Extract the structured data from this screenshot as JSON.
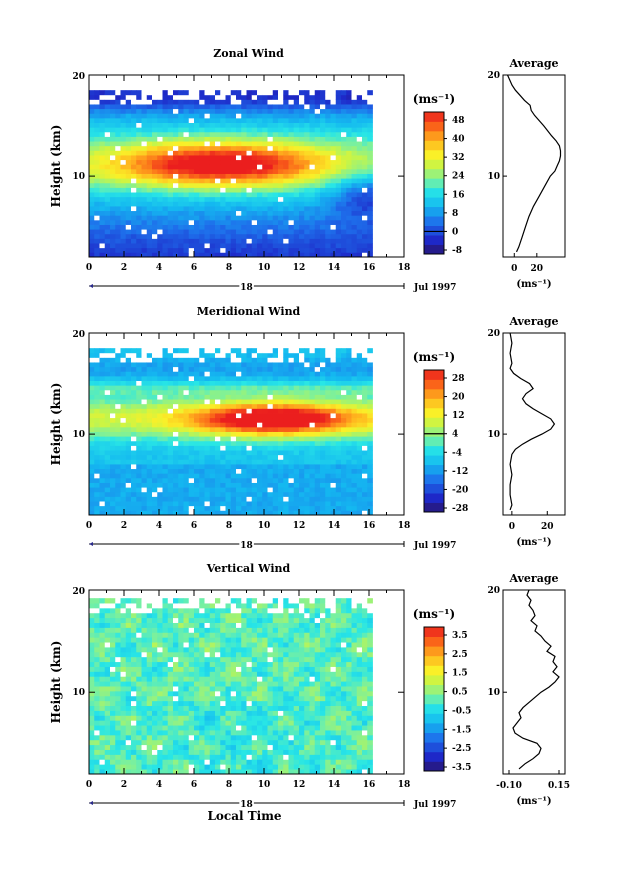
{
  "chart_data": [
    {
      "type": "heatmap",
      "title": "Zonal Wind",
      "ylabel": "Height (km)",
      "xlim": [
        0,
        18
      ],
      "ylim": [
        2,
        20
      ],
      "x_ticks": [
        "0",
        "2",
        "4",
        "6",
        "8",
        "10",
        "12",
        "14",
        "16",
        "18"
      ],
      "y_ticks": [
        "10",
        "20"
      ],
      "date_tick": "18",
      "date_label": "Jul 1997",
      "colorbar_unit": "(ms⁻¹)",
      "colorbar_levels": [
        "48",
        "40",
        "32",
        "24",
        "16",
        "8",
        "0",
        "-8"
      ],
      "colorbar_range": [
        -8,
        52
      ],
      "colorbar_zero_line": 0,
      "field": {
        "kind": "zonal",
        "x_end": 16.2,
        "y_top": 18.5,
        "core": {
          "x": 7.5,
          "y": 11.2,
          "value": 48
        },
        "upper_min": {
          "y": 17.8,
          "value": -5
        },
        "low_right_min": {
          "x": 16,
          "y": 8,
          "value": 0
        }
      },
      "average": {
        "title": "Average",
        "xlabel": "(ms⁻¹)",
        "x_ticks": [
          "0",
          "20"
        ],
        "xlim": [
          -10,
          45
        ],
        "ylim": [
          2,
          20
        ],
        "y_ticks": [
          "10",
          "20"
        ],
        "profile": {
          "y": [
            2.5,
            3,
            4,
            5,
            6,
            7,
            8,
            9,
            10,
            10.5,
            11,
            11.5,
            12,
            12.5,
            13,
            13.5,
            14,
            15,
            16,
            16.5,
            17,
            17.5,
            18,
            18.5,
            19,
            19.5,
            20
          ],
          "x": [
            2,
            4,
            7,
            10,
            13,
            17,
            22,
            27,
            32,
            36,
            38,
            40,
            41,
            41,
            40,
            37,
            33,
            26,
            18,
            15,
            14,
            9,
            5,
            1,
            -2,
            -4,
            -6
          ]
        }
      }
    },
    {
      "type": "heatmap",
      "title": "Meridional Wind",
      "ylabel": "Height (km)",
      "xlim": [
        0,
        18
      ],
      "ylim": [
        2,
        20
      ],
      "x_ticks": [
        "0",
        "2",
        "4",
        "6",
        "8",
        "10",
        "12",
        "14",
        "16",
        "18"
      ],
      "y_ticks": [
        "10",
        "20"
      ],
      "date_tick": "18",
      "date_label": "Jul 1997",
      "colorbar_unit": "(ms⁻¹)",
      "colorbar_levels": [
        "28",
        "20",
        "12",
        "4",
        "-4",
        "-12",
        "-20",
        "-28"
      ],
      "colorbar_range": [
        -28,
        32
      ],
      "colorbar_zero_line": 4,
      "field": {
        "kind": "meridional",
        "x_end": 16.2,
        "y_top": 18.5,
        "core": {
          "x": 10.5,
          "y": 11.5,
          "value": 30
        }
      },
      "average": {
        "title": "Average",
        "xlabel": "(ms⁻¹)",
        "x_ticks": [
          "0",
          "20"
        ],
        "xlim": [
          -5,
          30
        ],
        "ylim": [
          2,
          20
        ],
        "y_ticks": [
          "10",
          "20"
        ],
        "profile": {
          "y": [
            2.5,
            3,
            4,
            5,
            6,
            7,
            8,
            8.5,
            9,
            9.5,
            10,
            10.5,
            11,
            11.5,
            12,
            12.5,
            13,
            13.5,
            14,
            14.5,
            15,
            15.5,
            16,
            16.5,
            17,
            18,
            19,
            20
          ],
          "x": [
            -1,
            0,
            -1,
            -1,
            0,
            -1,
            0,
            2,
            6,
            11,
            17,
            22,
            24,
            22,
            17,
            12,
            8,
            6,
            8,
            12,
            10,
            5,
            1,
            -1,
            0,
            -1,
            0,
            -1
          ]
        }
      }
    },
    {
      "type": "heatmap",
      "title": "Vertical Wind",
      "ylabel": "Height (km)",
      "xlabel": "Local Time",
      "xlim": [
        0,
        18
      ],
      "ylim": [
        2,
        20
      ],
      "x_ticks": [
        "0",
        "2",
        "4",
        "6",
        "8",
        "10",
        "12",
        "14",
        "16",
        "18"
      ],
      "y_ticks": [
        "10",
        "20"
      ],
      "date_tick": "18",
      "date_label": "Jul 1997",
      "colorbar_unit": "(ms⁻¹)",
      "colorbar_levels": [
        "3.5",
        "2.5",
        "1.5",
        "0.5",
        "-0.5",
        "-1.5",
        "-2.5",
        "-3.5"
      ],
      "colorbar_range": [
        -3.5,
        4
      ],
      "field": {
        "kind": "vertical",
        "x_end": 16.2,
        "y_top": 19.2
      },
      "average": {
        "title": "Average",
        "xlabel": "(ms⁻¹)",
        "x_ticks": [
          "-0.10",
          "0.15"
        ],
        "xlim": [
          -0.13,
          0.18
        ],
        "ylim": [
          2,
          20
        ],
        "y_ticks": [
          "10",
          "20"
        ],
        "profile": {
          "y": [
            2.5,
            3,
            3.5,
            4,
            4.5,
            5,
            5.5,
            6,
            6.5,
            7,
            7.5,
            8,
            8.5,
            9,
            9.5,
            10,
            10.5,
            11,
            11.5,
            12,
            12.5,
            13,
            13.5,
            14,
            14.5,
            15,
            15.5,
            16,
            16.5,
            17,
            17.5,
            18,
            18.5,
            19,
            19.5,
            20
          ],
          "x": [
            -0.05,
            -0.02,
            0.02,
            0.05,
            0.06,
            0.04,
            -0.03,
            -0.07,
            -0.08,
            -0.06,
            -0.04,
            -0.05,
            -0.03,
            0.0,
            0.03,
            0.06,
            0.1,
            0.13,
            0.15,
            0.12,
            0.14,
            0.12,
            0.13,
            0.09,
            0.11,
            0.08,
            0.06,
            0.03,
            0.04,
            0.01,
            0.03,
            0.02,
            0.0,
            0.01,
            -0.01,
            0.0
          ]
        }
      }
    }
  ]
}
